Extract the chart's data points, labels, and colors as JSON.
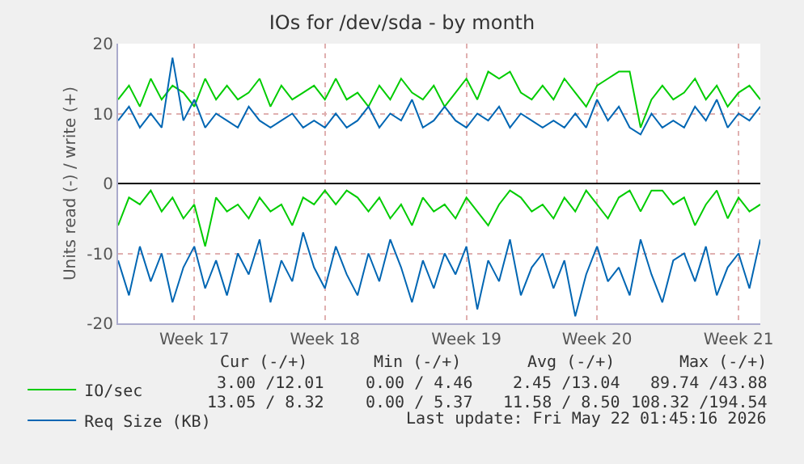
{
  "chart_data": {
    "type": "line",
    "title": "IOs for /dev/sda - by month",
    "ylabel": "Units read (-) / write (+)",
    "categories": [
      null,
      null,
      null,
      null,
      null,
      null,
      null,
      "Week 17",
      null,
      null,
      null,
      null,
      null,
      null,
      null,
      null,
      null,
      null,
      null,
      "Week 18",
      null,
      null,
      null,
      null,
      null,
      null,
      null,
      null,
      null,
      null,
      null,
      null,
      "Week 19",
      null,
      null,
      null,
      null,
      null,
      null,
      null,
      null,
      null,
      null,
      null,
      "Week 20",
      null,
      null,
      null,
      null,
      null,
      null,
      null,
      null,
      null,
      null,
      null,
      null,
      "Week 21",
      null,
      null
    ],
    "series": [
      {
        "name": "IO/sec",
        "color": "#00cc00",
        "values": [
          12,
          14,
          11,
          15,
          12,
          14,
          13,
          11,
          15,
          12,
          14,
          12,
          13,
          15,
          11,
          14,
          12,
          13,
          14,
          12,
          15,
          12,
          13,
          11,
          14,
          12,
          15,
          13,
          12,
          14,
          11,
          13,
          15,
          12,
          16,
          15,
          16,
          13,
          12,
          14,
          12,
          15,
          13,
          11,
          14,
          15,
          16,
          16,
          8,
          12,
          14,
          12,
          13,
          15,
          12,
          14,
          11,
          13,
          14,
          12
        ]
      },
      {
        "color": "#00cc00",
        "values": [
          -6,
          -2,
          -3,
          -1,
          -4,
          -2,
          -5,
          -3,
          -9,
          -2,
          -4,
          -3,
          -5,
          -2,
          -4,
          -3,
          -6,
          -2,
          -3,
          -1,
          -3,
          -1,
          -2,
          -4,
          -2,
          -5,
          -3,
          -6,
          -2,
          -4,
          -3,
          -5,
          -2,
          -4,
          -6,
          -3,
          -1,
          -2,
          -4,
          -3,
          -5,
          -2,
          -4,
          -1,
          -3,
          -5,
          -2,
          -1,
          -4,
          -1,
          -1,
          -3,
          -2,
          -6,
          -3,
          -1,
          -5,
          -2,
          -4,
          -3
        ]
      },
      {
        "name": "Req Size (KB)",
        "color": "#0066b3",
        "values": [
          9,
          11,
          8,
          10,
          8,
          18,
          9,
          12,
          8,
          10,
          9,
          8,
          11,
          9,
          8,
          9,
          10,
          8,
          9,
          8,
          10,
          8,
          9,
          11,
          8,
          10,
          9,
          12,
          8,
          9,
          11,
          9,
          8,
          10,
          9,
          11,
          8,
          10,
          9,
          8,
          9,
          8,
          10,
          8,
          12,
          9,
          11,
          8,
          7,
          10,
          8,
          9,
          8,
          11,
          9,
          12,
          8,
          10,
          9,
          11
        ]
      },
      {
        "color": "#0066b3",
        "values": [
          -11,
          -16,
          -9,
          -14,
          -10,
          -17,
          -12,
          -9,
          -15,
          -11,
          -16,
          -10,
          -13,
          -8,
          -17,
          -11,
          -14,
          -7,
          -12,
          -15,
          -9,
          -13,
          -16,
          -10,
          -14,
          -8,
          -12,
          -17,
          -11,
          -15,
          -10,
          -13,
          -9,
          -18,
          -11,
          -14,
          -8,
          -16,
          -12,
          -10,
          -15,
          -11,
          -19,
          -13,
          -9,
          -14,
          -12,
          -16,
          -8,
          -13,
          -17,
          -11,
          -10,
          -14,
          -9,
          -16,
          -12,
          -10,
          -15,
          -8
        ]
      }
    ],
    "ylim": [
      -20,
      20
    ],
    "yticks": [
      -20,
      -10,
      0,
      10,
      20
    ],
    "grid": true,
    "legend": "bottom left",
    "marker": "none",
    "line_style": "solid",
    "annotations": [
      "Cur (-/+)",
      "Min (-/+)",
      "Avg (-/+)",
      "Max (-/+)",
      "3.00 /12.01",
      "0.00 / 4.46",
      "2.45 /13.04",
      "89.74 /43.88",
      "13.05 / 8.32",
      "0.00 / 5.37",
      "11.58 / 8.50",
      "108.32 /194.54",
      "Last update: Fri May 22 01:45:16 2026"
    ]
  }
}
